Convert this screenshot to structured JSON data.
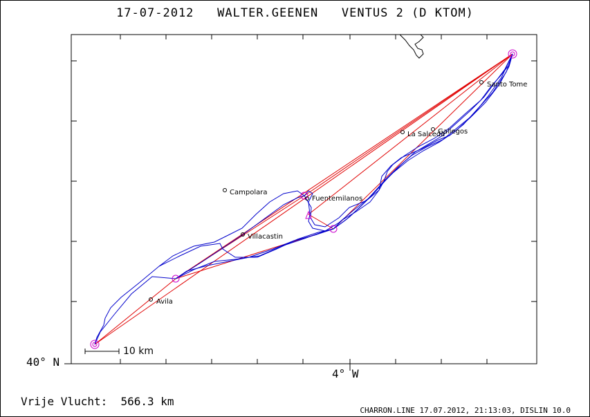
{
  "header": {
    "date": "17-07-2012",
    "pilot": "WALTER.GEENEN",
    "glider": "VENTUS 2 (D KTOM)"
  },
  "axes": {
    "lat_label": "40° N",
    "lon_label": "4° W"
  },
  "scale": {
    "label": "10 km"
  },
  "flight": {
    "label": "Vrije Vlucht:",
    "distance": "566.3 km"
  },
  "footer": "CHARRON.LINE 17.07.2012, 21:13:03, DISLIN 10.0",
  "colors": {
    "task": "#e00000",
    "track": "#0000cc",
    "turnpoint": "#cc00cc",
    "frame": "#000000"
  },
  "towns": [
    {
      "name": "Santo Tome"
    },
    {
      "name": "La Salceda"
    },
    {
      "name": "Gallegos"
    },
    {
      "name": "Campolara"
    },
    {
      "name": "Fuentemilanos"
    },
    {
      "name": "Villacastin"
    },
    {
      "name": "Avila"
    }
  ]
}
